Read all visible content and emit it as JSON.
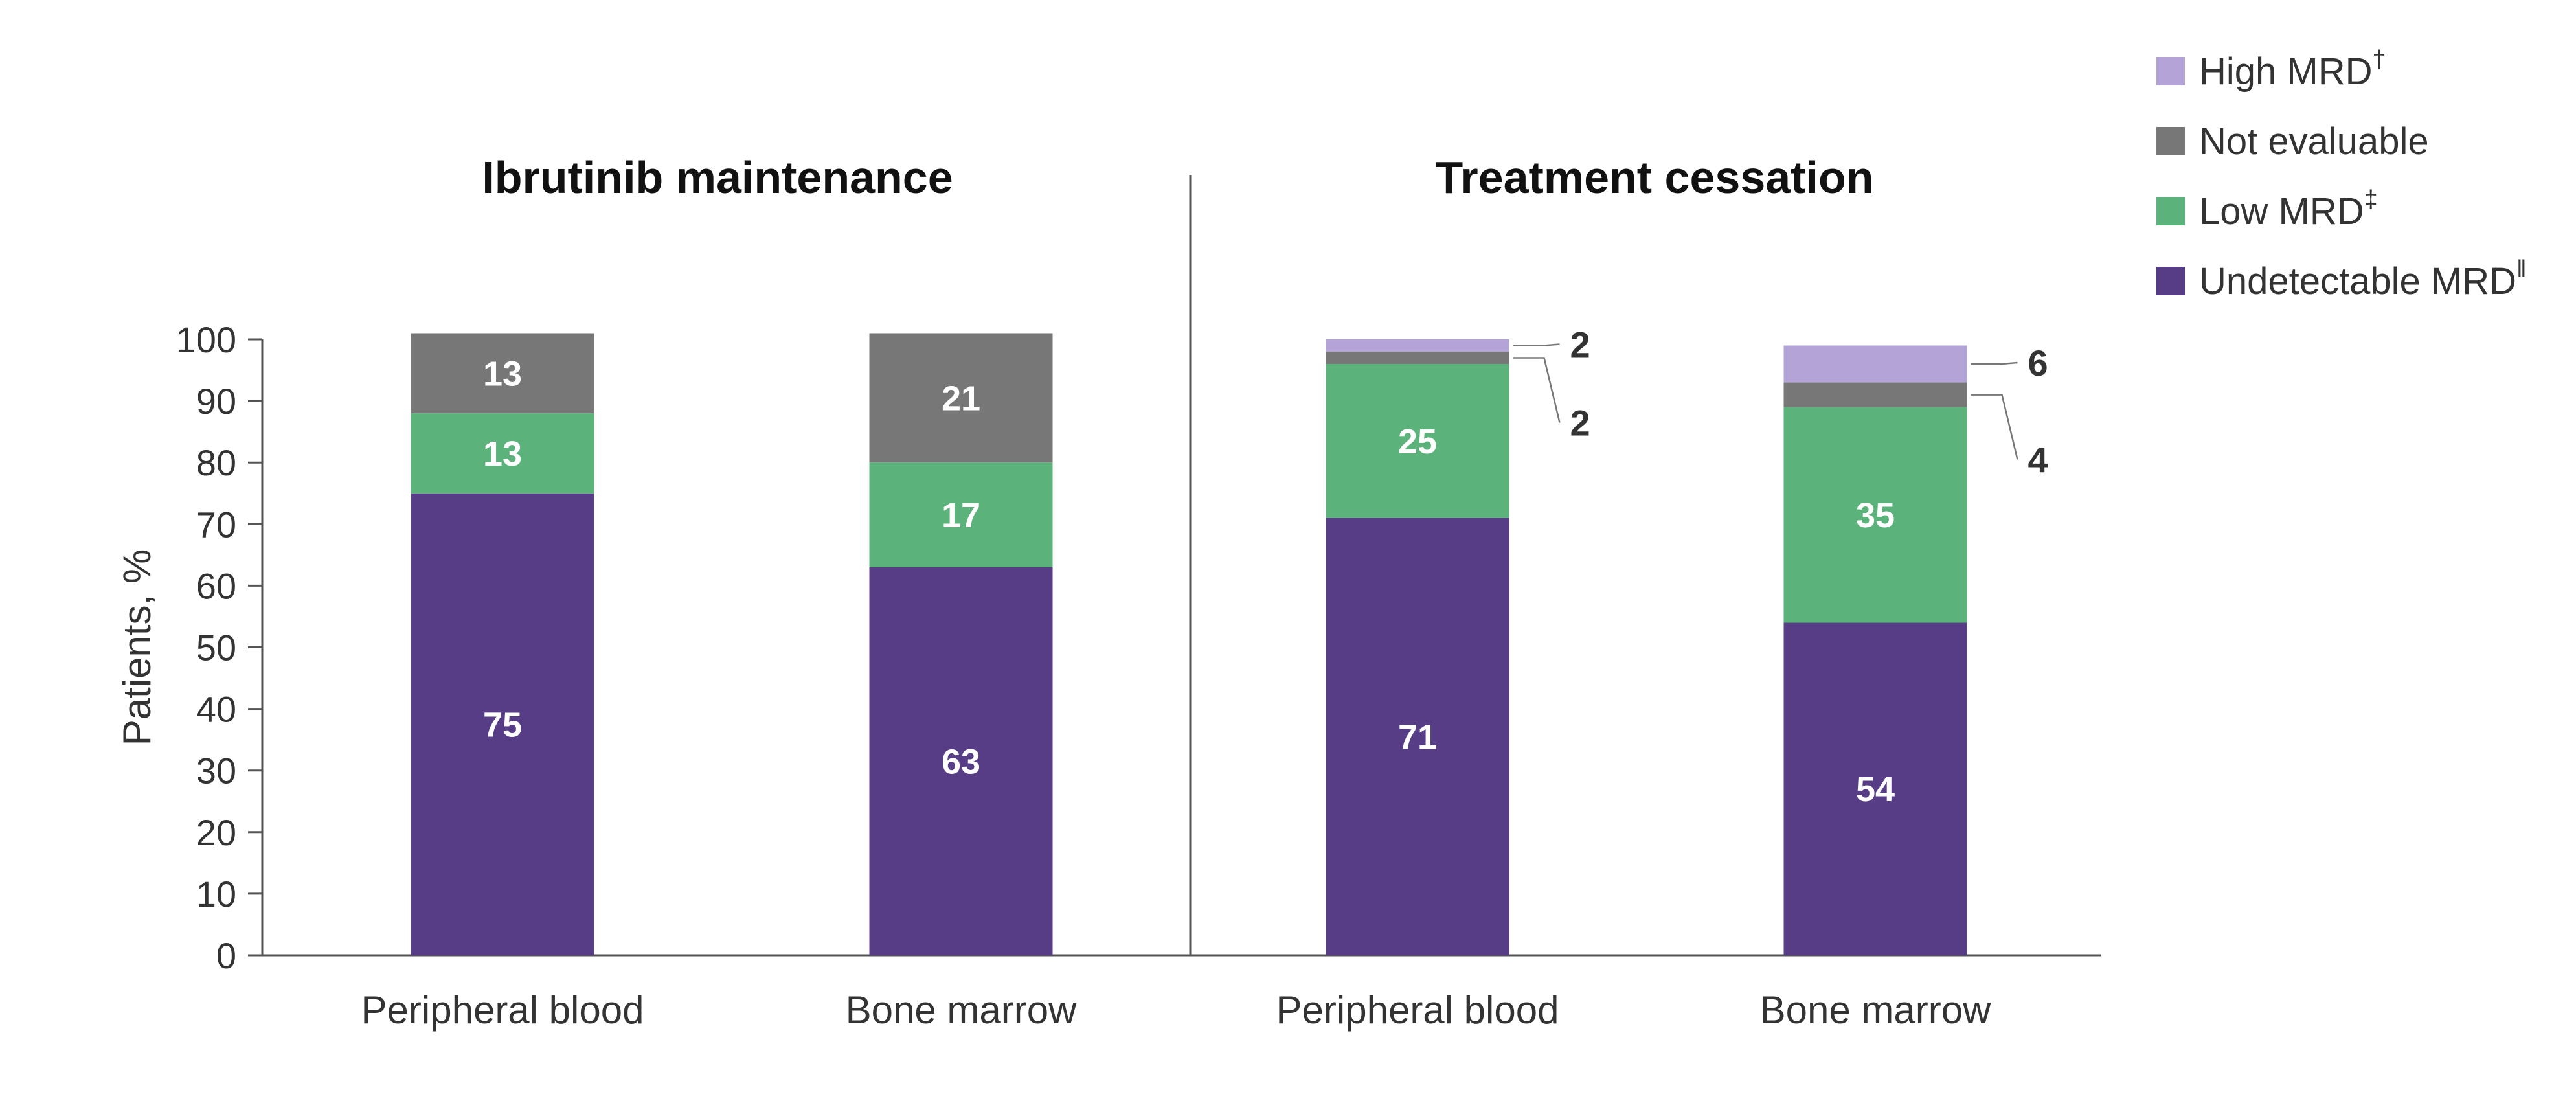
{
  "chart_data": {
    "type": "bar",
    "stacked": true,
    "ylabel": "Patients, %",
    "ylim": [
      0,
      100
    ],
    "yticks": [
      "0",
      "10",
      "20",
      "30",
      "40",
      "50",
      "60",
      "70",
      "80",
      "90",
      "100"
    ],
    "legend": {
      "position": "top-right",
      "items": [
        {
          "name": "High MRD",
          "sup": "†",
          "color": "#b3a3d6"
        },
        {
          "name": "Not evaluable",
          "sup": "",
          "color": "#777777"
        },
        {
          "name": "Low MRD",
          "sup": "‡",
          "color": "#5cb27b"
        },
        {
          "name": "Undetectable MRD",
          "sup": "‖",
          "color": "#563d86"
        }
      ]
    },
    "panels": [
      {
        "title": "Ibrutinib maintenance",
        "categories": [
          "Peripheral blood",
          "Bone marrow"
        ],
        "series": [
          {
            "name": "Undetectable MRD",
            "values": [
              75,
              63
            ],
            "labels": [
              "75",
              "63"
            ]
          },
          {
            "name": "Low MRD",
            "values": [
              13,
              17
            ],
            "labels": [
              "13",
              "17"
            ]
          },
          {
            "name": "Not evaluable",
            "values": [
              13,
              21
            ],
            "labels": [
              "13",
              "21"
            ]
          },
          {
            "name": "High MRD",
            "values": [
              0,
              0
            ],
            "labels": [
              "",
              ""
            ]
          }
        ]
      },
      {
        "title": "Treatment cessation",
        "categories": [
          "Peripheral blood",
          "Bone marrow"
        ],
        "series": [
          {
            "name": "Undetectable MRD",
            "values": [
              71,
              54
            ],
            "labels": [
              "71",
              "54"
            ]
          },
          {
            "name": "Low MRD",
            "values": [
              25,
              35
            ],
            "labels": [
              "25",
              "35"
            ]
          },
          {
            "name": "Not evaluable",
            "values": [
              2,
              4
            ],
            "labels": [
              "2",
              "4"
            ]
          },
          {
            "name": "High MRD",
            "values": [
              2,
              6
            ],
            "labels": [
              "2",
              "6"
            ]
          }
        ]
      }
    ]
  }
}
